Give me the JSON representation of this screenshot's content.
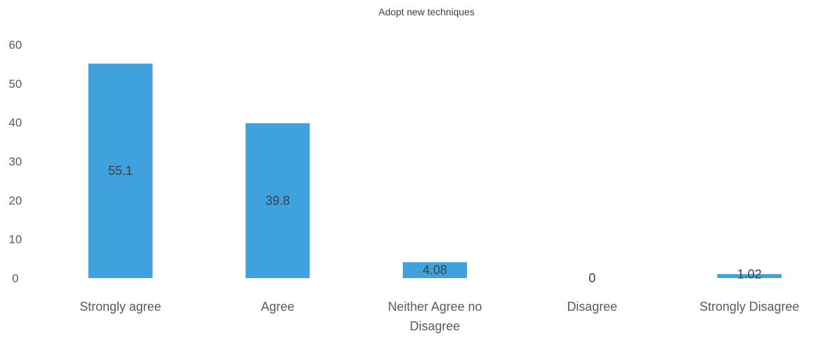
{
  "chart_data": {
    "type": "bar",
    "title": "Adopt new techniques",
    "xlabel": "",
    "ylabel": "",
    "categories": [
      "Strongly agree",
      "Agree",
      "Neither Agree no Disagree",
      "Disagree",
      "Strongly Disagree"
    ],
    "category_lines": [
      [
        "Strongly agree"
      ],
      [
        "Agree"
      ],
      [
        "Neither Agree no",
        "Disagree"
      ],
      [
        "Disagree"
      ],
      [
        "Strongly Disagree"
      ]
    ],
    "values": [
      55.1,
      39.8,
      4.08,
      0,
      1.02
    ],
    "data_labels": [
      "55.1",
      "39.8",
      "4.08",
      "0",
      "1.02"
    ],
    "ylim": [
      0,
      60
    ],
    "yticks": [
      0,
      10,
      20,
      30,
      40,
      50,
      60
    ],
    "grid": false,
    "legend": "none",
    "bar_color": "#3fa2dc"
  }
}
